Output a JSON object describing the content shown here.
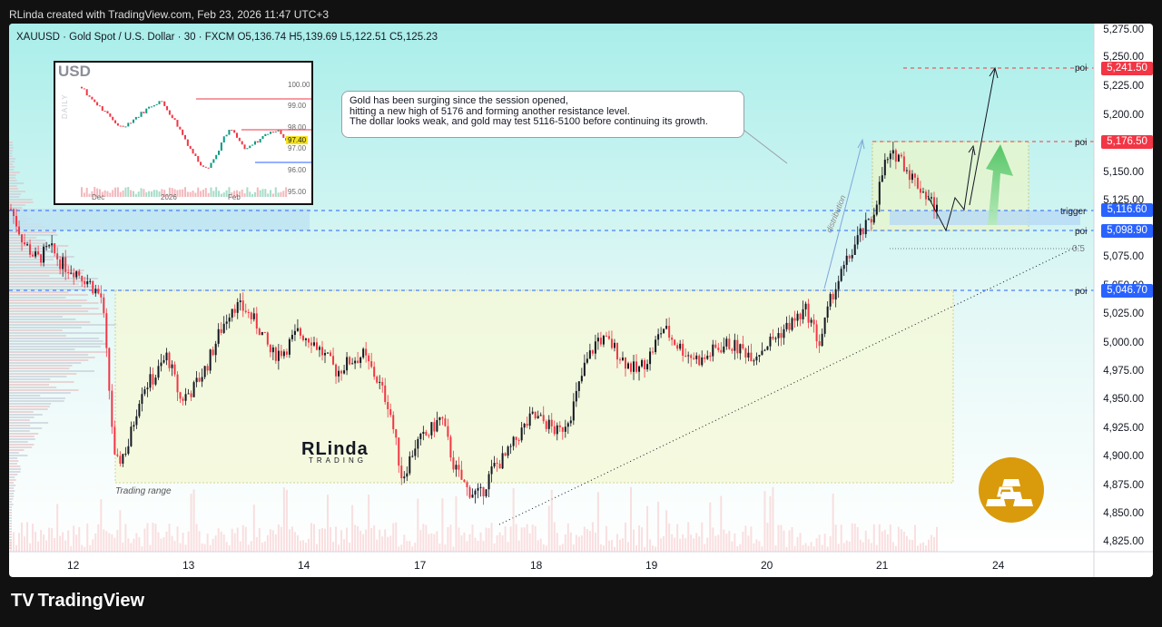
{
  "header": {
    "attribution": "RLinda created with TradingView.com, Feb 23, 2026 11:47 UTC+3"
  },
  "symbol": {
    "line": "XAUUSD · Gold Spot / U.S. Dollar · 30 · FXCM  O5,136.74  H5,139.69  L5,122.51  C5,125.23"
  },
  "note": {
    "lines": [
      "Gold has been surging since the session opened,",
      "hitting a new high of 5176 and forming another resistance level.",
      "The dollar looks weak, and gold may test 5116-5100 before continuing its growth."
    ]
  },
  "inset": {
    "label": "USD",
    "daily": "DAILY",
    "ticks": [
      "100.00",
      "99.00",
      "98.00",
      "97.00",
      "96.00",
      "95.00"
    ],
    "current": "97.40",
    "xlabels": [
      "Dec",
      "2026",
      "Feb"
    ]
  },
  "logo": {
    "main": "RLinda",
    "sub": "TRADING"
  },
  "labels": {
    "trading_range": "Trading range",
    "distribution": "distribution"
  },
  "price_axis": {
    "ticks": [
      "5,275.00",
      "5,250.00",
      "5,225.00",
      "5,200.00",
      "5,150.00",
      "5,125.00",
      "5,075.00",
      "5,050.00",
      "5,025.00",
      "5,000.00",
      "4,975.00",
      "4,950.00",
      "4,925.00",
      "4,900.00",
      "4,875.00",
      "4,850.00",
      "4,825.00"
    ],
    "tags": [
      {
        "text": "5,241.50",
        "color": "#f23645"
      },
      {
        "text": "5,176.50",
        "color": "#f23645"
      },
      {
        "text": "5,116.60",
        "color": "#2962ff"
      },
      {
        "text": "5,098.90",
        "color": "#2962ff"
      },
      {
        "text": "5,046.70",
        "color": "#2962ff"
      }
    ],
    "annotations": [
      "poi",
      "poi",
      "trigger",
      "poi",
      "poi",
      "0.5"
    ]
  },
  "time_axis": [
    "12",
    "13",
    "14",
    "17",
    "18",
    "19",
    "20",
    "21",
    "24"
  ],
  "chart_data": {
    "type": "candlestick",
    "symbol": "XAUUSD",
    "timeframe": "30",
    "ohlc_last": {
      "open": 5136.74,
      "high": 5139.69,
      "low": 5122.51,
      "close": 5125.23
    },
    "x_axis": [
      "12",
      "13",
      "14",
      "17",
      "18",
      "19",
      "20",
      "21",
      "24"
    ],
    "ylim": [
      4815,
      5285
    ],
    "levels": [
      {
        "label": "poi",
        "value": 5241.5
      },
      {
        "label": "poi",
        "value": 5176.5
      },
      {
        "label": "trigger",
        "value": 5116.6
      },
      {
        "label": "poi",
        "value": 5098.9
      },
      {
        "label": "poi",
        "value": 5046.7
      }
    ],
    "path_closes": [
      5120,
      5090,
      5075,
      5085,
      5070,
      5065,
      5055,
      5040,
      4890,
      4910,
      4960,
      4970,
      4990,
      4950,
      4960,
      4980,
      5010,
      5035,
      5030,
      5015,
      4990,
      4995,
      5010,
      5005,
      4990,
      4975,
      4985,
      4990,
      4970,
      4945,
      4880,
      4910,
      4920,
      4935,
      4890,
      4870,
      4865,
      4890,
      4900,
      4920,
      4935,
      4930,
      4920,
      4940,
      4980,
      5005,
      5000,
      4985,
      4975,
      4990,
      5015,
      5000,
      4990,
      4985,
      4995,
      5000,
      4995,
      4990,
      5000,
      5010,
      5020,
      5030,
      5000,
      5045,
      5070,
      5095,
      5110,
      5160,
      5170,
      5150,
      5135,
      5120
    ],
    "colors": {
      "up": "#089981",
      "down": "#f23645",
      "up_candle": "#131722",
      "bg_top": "#aef0ec",
      "bg_bottom": "#ffffff"
    }
  }
}
